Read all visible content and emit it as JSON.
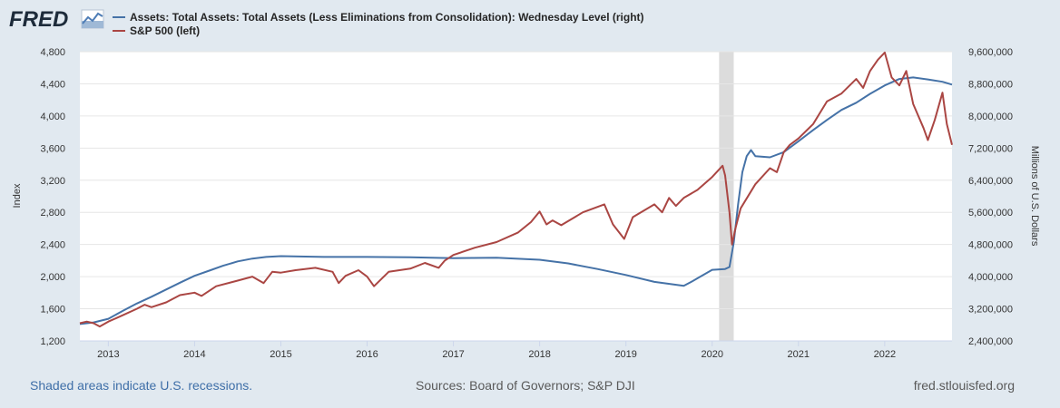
{
  "header": {
    "logo_text": "FRED",
    "logo_icon": "line-graph-icon"
  },
  "colors": {
    "background": "#e1e9f0",
    "plot_background": "#ffffff",
    "series_assets": "#4572a7",
    "series_sp500": "#aa4643",
    "recession_shade": "#dcdcdc"
  },
  "chart_data": {
    "type": "line",
    "title": "",
    "xlabel": "",
    "ylabel_left": "Index",
    "ylabel_right": "Millions of U.S. Dollars",
    "xlim": [
      2012.67,
      2022.78
    ],
    "ylim_left": [
      1200,
      4800
    ],
    "ylim_right": [
      2400000,
      9600000
    ],
    "x_ticks": [
      2013,
      2014,
      2015,
      2016,
      2017,
      2018,
      2019,
      2020,
      2021,
      2022
    ],
    "x_tick_labels": [
      "2013",
      "2014",
      "2015",
      "2016",
      "2017",
      "2018",
      "2019",
      "2020",
      "2021",
      "2022"
    ],
    "left_ticks": [
      1200,
      1600,
      2000,
      2400,
      2800,
      3200,
      3600,
      4000,
      4400,
      4800
    ],
    "left_tick_labels": [
      "1,200",
      "1,600",
      "2,000",
      "2,400",
      "2,800",
      "3,200",
      "3,600",
      "4,000",
      "4,400",
      "4,800"
    ],
    "right_ticks": [
      2400000,
      3200000,
      4000000,
      4800000,
      5600000,
      6400000,
      7200000,
      8000000,
      8800000,
      9600000
    ],
    "right_tick_labels": [
      "2,400,000",
      "3,200,000",
      "4,000,000",
      "4,800,000",
      "5,600,000",
      "6,400,000",
      "7,200,000",
      "8,000,000",
      "8,800,000",
      "9,600,000"
    ],
    "grid": true,
    "recessions": [
      [
        2020.08,
        2020.25
      ]
    ],
    "series": [
      {
        "name": "Assets: Total Assets: Total Assets (Less Eliminations from Consolidation): Wednesday Level (right)",
        "axis": "right",
        "x": [
          2012.67,
          2012.83,
          2013.0,
          2013.17,
          2013.33,
          2013.5,
          2013.67,
          2013.83,
          2014.0,
          2014.17,
          2014.33,
          2014.5,
          2014.67,
          2014.83,
          2015.0,
          2015.5,
          2016.0,
          2016.5,
          2017.0,
          2017.5,
          2018.0,
          2018.33,
          2018.67,
          2019.0,
          2019.33,
          2019.67,
          2019.75,
          2019.83,
          2020.0,
          2020.15,
          2020.2,
          2020.25,
          2020.3,
          2020.35,
          2020.4,
          2020.45,
          2020.5,
          2020.67,
          2020.83,
          2021.0,
          2021.17,
          2021.33,
          2021.5,
          2021.67,
          2021.83,
          2022.0,
          2022.17,
          2022.33,
          2022.5,
          2022.67,
          2022.78
        ],
        "values": [
          2820000,
          2860000,
          2950000,
          3150000,
          3330000,
          3500000,
          3680000,
          3850000,
          4020000,
          4150000,
          4270000,
          4380000,
          4450000,
          4490000,
          4510000,
          4490000,
          4490000,
          4480000,
          4460000,
          4470000,
          4420000,
          4330000,
          4190000,
          4040000,
          3870000,
          3770000,
          3860000,
          3960000,
          4170000,
          4190000,
          4240000,
          4850000,
          5800000,
          6600000,
          7000000,
          7150000,
          7000000,
          6970000,
          7100000,
          7370000,
          7650000,
          7900000,
          8150000,
          8330000,
          8550000,
          8760000,
          8920000,
          8960000,
          8910000,
          8850000,
          8780000
        ]
      },
      {
        "name": "S&P 500 (left)",
        "axis": "left",
        "x": [
          2012.67,
          2012.75,
          2012.83,
          2012.9,
          2013.0,
          2013.17,
          2013.33,
          2013.42,
          2013.5,
          2013.67,
          2013.83,
          2014.0,
          2014.08,
          2014.25,
          2014.5,
          2014.67,
          2014.8,
          2014.9,
          2015.0,
          2015.17,
          2015.4,
          2015.6,
          2015.67,
          2015.75,
          2015.9,
          2016.0,
          2016.08,
          2016.25,
          2016.5,
          2016.67,
          2016.83,
          2016.9,
          2017.0,
          2017.25,
          2017.5,
          2017.75,
          2017.9,
          2018.0,
          2018.08,
          2018.15,
          2018.25,
          2018.5,
          2018.75,
          2018.85,
          2018.98,
          2019.08,
          2019.33,
          2019.42,
          2019.5,
          2019.58,
          2019.67,
          2019.83,
          2020.0,
          2020.12,
          2020.15,
          2020.2,
          2020.23,
          2020.27,
          2020.33,
          2020.5,
          2020.67,
          2020.75,
          2020.83,
          2020.9,
          2021.0,
          2021.17,
          2021.33,
          2021.5,
          2021.67,
          2021.75,
          2021.83,
          2021.92,
          2022.0,
          2022.08,
          2022.17,
          2022.25,
          2022.33,
          2022.45,
          2022.5,
          2022.58,
          2022.67,
          2022.72,
          2022.78
        ],
        "values": [
          1420,
          1440,
          1420,
          1380,
          1440,
          1520,
          1600,
          1650,
          1620,
          1680,
          1770,
          1800,
          1760,
          1880,
          1950,
          2000,
          1920,
          2060,
          2050,
          2080,
          2110,
          2060,
          1920,
          2010,
          2080,
          2000,
          1880,
          2060,
          2100,
          2170,
          2110,
          2200,
          2270,
          2360,
          2430,
          2550,
          2680,
          2810,
          2650,
          2700,
          2640,
          2800,
          2900,
          2650,
          2470,
          2740,
          2900,
          2800,
          2980,
          2880,
          2980,
          3080,
          3240,
          3380,
          3260,
          2800,
          2400,
          2600,
          2850,
          3150,
          3350,
          3300,
          3550,
          3640,
          3720,
          3900,
          4180,
          4280,
          4460,
          4350,
          4560,
          4700,
          4790,
          4480,
          4380,
          4560,
          4150,
          3850,
          3700,
          3950,
          4290,
          3900,
          3640
        ]
      }
    ]
  },
  "footer": {
    "recession_note": "Shaded areas indicate U.S. recessions.",
    "sources": "Sources: Board of Governors; S&P DJI",
    "site": "fred.stlouisfed.org"
  }
}
